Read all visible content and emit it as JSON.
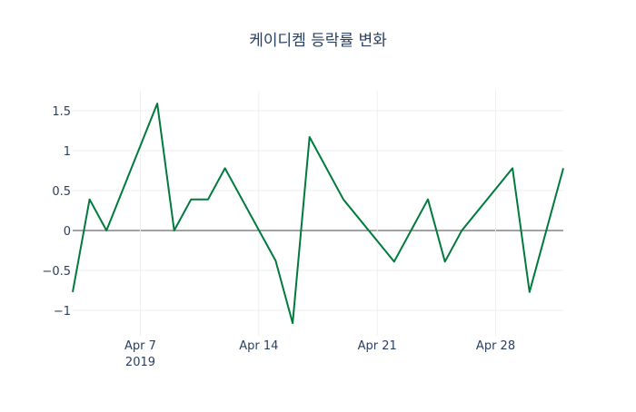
{
  "chart_data": {
    "type": "line",
    "title": "케이디켐 등락률 변화",
    "xlabel": "",
    "ylabel": "",
    "x": [
      "2019-04-03",
      "2019-04-04",
      "2019-04-05",
      "2019-04-08",
      "2019-04-09",
      "2019-04-10",
      "2019-04-11",
      "2019-04-12",
      "2019-04-15",
      "2019-04-16",
      "2019-04-17",
      "2019-04-19",
      "2019-04-22",
      "2019-04-24",
      "2019-04-25",
      "2019-04-26",
      "2019-04-29",
      "2019-04-30",
      "2019-05-02"
    ],
    "series": [
      {
        "name": "등락률",
        "color": "#007a3d",
        "values": [
          -0.77,
          0.39,
          0,
          1.59,
          0,
          0.39,
          0.39,
          0.78,
          -0.38,
          -1.16,
          1.17,
          0.39,
          -0.39,
          0.39,
          -0.39,
          0,
          0.78,
          -0.77,
          0.78
        ]
      }
    ],
    "xlim": [
      "2019-04-03",
      "2019-05-02"
    ],
    "ylim": [
      -1.3,
      1.75
    ],
    "xticks": [
      {
        "date": "2019-04-07",
        "label": "Apr 7",
        "sub": "2019"
      },
      {
        "date": "2019-04-14",
        "label": "Apr 14"
      },
      {
        "date": "2019-04-21",
        "label": "Apr 21"
      },
      {
        "date": "2019-04-28",
        "label": "Apr 28"
      }
    ],
    "yticks": [
      {
        "value": 1.5,
        "label": "1.5"
      },
      {
        "value": 1,
        "label": "1"
      },
      {
        "value": 0.5,
        "label": "0.5"
      },
      {
        "value": 0,
        "label": "0"
      },
      {
        "value": -0.5,
        "label": "−0.5"
      },
      {
        "value": -1,
        "label": "−1"
      }
    ],
    "grid": true,
    "legend": "none"
  }
}
